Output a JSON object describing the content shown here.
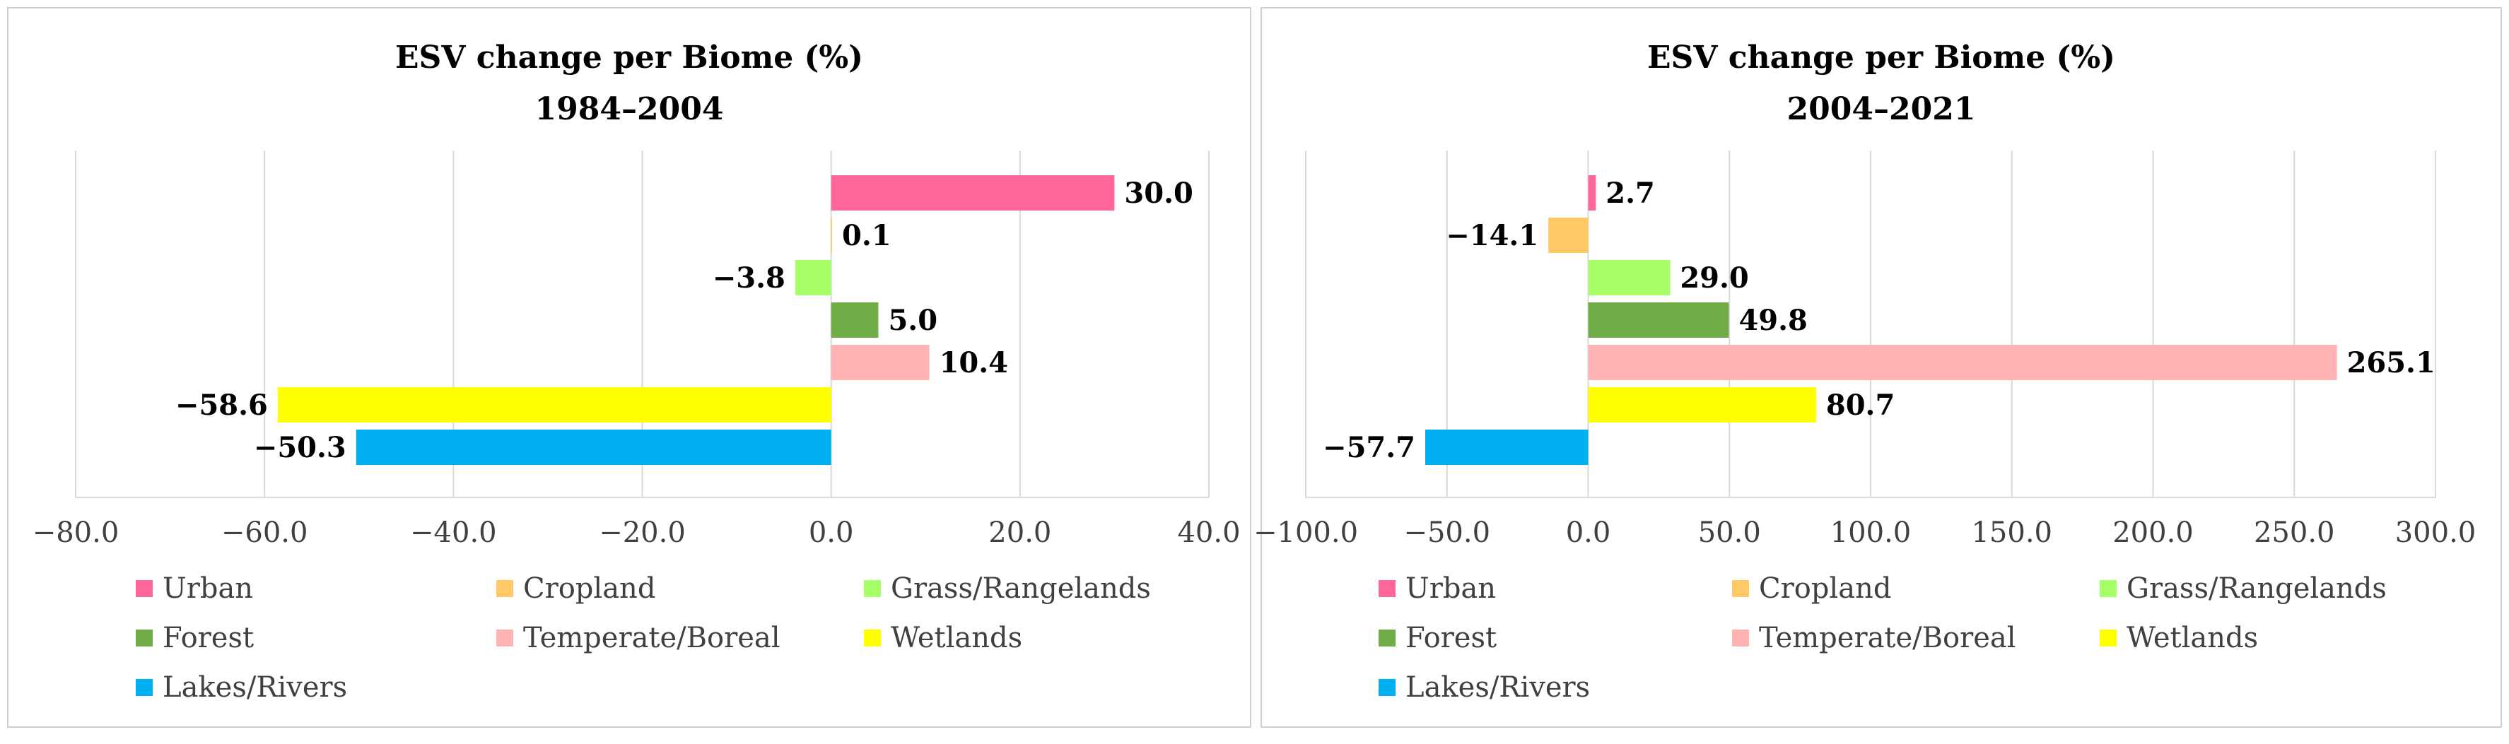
{
  "chart_data": [
    {
      "type": "bar",
      "orientation": "horizontal",
      "title": "ESV change per Biome (%)",
      "subtitle": "1984–2004",
      "categories": [
        "Urban",
        "Cropland",
        "Grass/Rangelands",
        "Forest",
        "Temperate/Boreal",
        "Wetlands",
        "Lakes/Rivers"
      ],
      "values": [
        30.0,
        0.1,
        -3.8,
        5.0,
        10.4,
        -58.6,
        -50.3
      ],
      "value_labels": [
        "30.0",
        "0.1",
        "−3.8",
        "5.0",
        "10.4",
        "−58.6",
        "−50.3"
      ],
      "xlim": [
        -80,
        40
      ],
      "xticks": [
        -80,
        -60,
        -40,
        -20,
        0,
        20,
        40
      ],
      "xtick_labels": [
        "−80.0",
        "−60.0",
        "−40.0",
        "−20.0",
        "0.0",
        "20.0",
        "40.0"
      ],
      "grid": true,
      "legend": [
        "Urban",
        "Cropland",
        "Grass/Rangelands",
        "Forest",
        "Temperate/Boreal",
        "Wetlands",
        "Lakes/Rivers"
      ],
      "legend_position": "bottom"
    },
    {
      "type": "bar",
      "orientation": "horizontal",
      "title": "ESV change per Biome  (%)",
      "subtitle": "2004–2021",
      "categories": [
        "Urban",
        "Cropland",
        "Grass/Rangelands",
        "Forest",
        "Temperate/Boreal",
        "Wetlands",
        "Lakes/Rivers"
      ],
      "values": [
        2.7,
        -14.1,
        29.0,
        49.8,
        265.1,
        80.7,
        -57.7
      ],
      "value_labels": [
        "2.7",
        "−14.1",
        "29.0",
        "49.8",
        "265.1",
        "80.7",
        "−57.7"
      ],
      "xlim": [
        -100,
        300
      ],
      "xticks": [
        -100,
        -50,
        0,
        50,
        100,
        150,
        200,
        250,
        300
      ],
      "xtick_labels": [
        "−100.0",
        "−50.0",
        "0.0",
        "50.0",
        "100.0",
        "150.0",
        "200.0",
        "250.0",
        "300.0"
      ],
      "grid": true,
      "legend": [
        "Urban",
        "Cropland",
        "Grass/Rangelands",
        "Forest",
        "Temperate/Boreal",
        "Wetlands",
        "Lakes/Rivers"
      ],
      "legend_position": "bottom"
    }
  ],
  "colors": {
    "Urban": "#ff6699",
    "Cropland": "#ffc966",
    "Grass/Rangelands": "#a6ff66",
    "Forest": "#70ad47",
    "Temperate/Boreal": "#ffb3b3",
    "Wetlands": "#ffff00",
    "Lakes/Rivers": "#00b0f0"
  }
}
